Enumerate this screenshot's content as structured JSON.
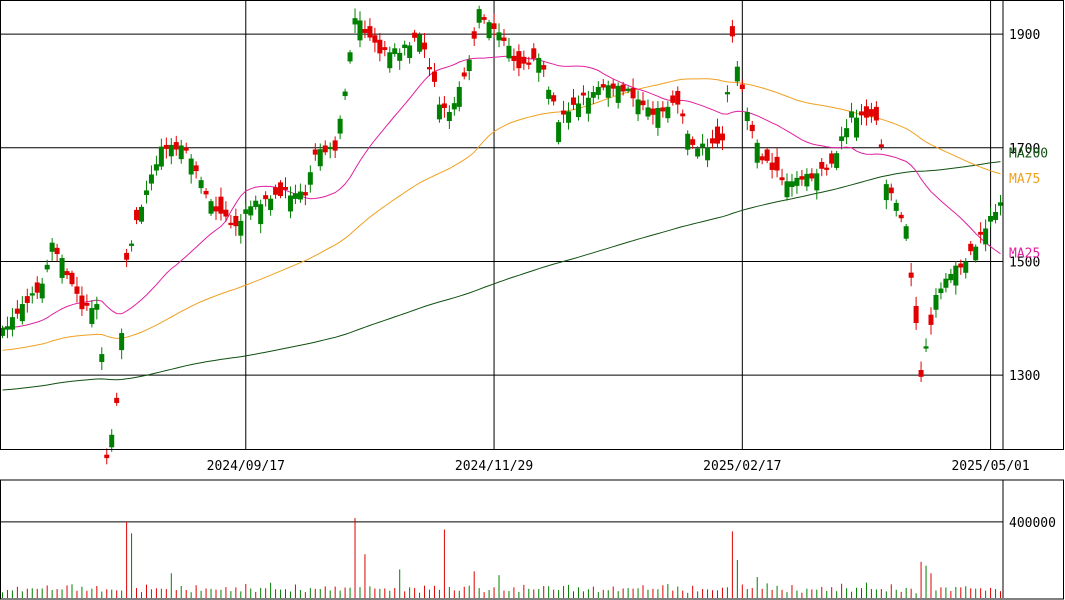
{
  "chart_data": {
    "type": "candlestick",
    "colors": {
      "up": "#008000",
      "down": "#e00000",
      "ma25": "#e020a0",
      "ma75": "#f0a020",
      "ma200": "#105010",
      "grid": "#000000"
    },
    "price_axis": {
      "ticks": [
        1300,
        1500,
        1700,
        1900
      ],
      "tick_labels": [
        "1300",
        "1500",
        "1700",
        "1900"
      ],
      "ylim": [
        1170,
        1960
      ]
    },
    "volume_axis": {
      "ticks": [
        400000
      ],
      "tick_labels": [
        "400000"
      ],
      "ylim": [
        0,
        620000
      ]
    },
    "date_labels": [
      {
        "label": "2024/09/17",
        "index": 49
      },
      {
        "label": "2024/11/29",
        "index": 99
      },
      {
        "label": "2025/02/17",
        "index": 149
      },
      {
        "label": "2025/05/01",
        "index": 199
      }
    ],
    "ma_labels": {
      "ma200": "MA200",
      "ma75": "MA75",
      "ma25": "MA25"
    },
    "close_keypoints": [
      [
        0,
        1380
      ],
      [
        8,
        1460
      ],
      [
        10,
        1530
      ],
      [
        12,
        1500
      ],
      [
        16,
        1420
      ],
      [
        19,
        1420
      ],
      [
        20,
        1340
      ],
      [
        21,
        1150
      ],
      [
        23,
        1250
      ],
      [
        25,
        1500
      ],
      [
        28,
        1600
      ],
      [
        32,
        1700
      ],
      [
        37,
        1700
      ],
      [
        42,
        1600
      ],
      [
        47,
        1560
      ],
      [
        50,
        1600
      ],
      [
        57,
        1620
      ],
      [
        61,
        1620
      ],
      [
        63,
        1690
      ],
      [
        67,
        1700
      ],
      [
        69,
        1800
      ],
      [
        71,
        1930
      ],
      [
        76,
        1870
      ],
      [
        80,
        1870
      ],
      [
        84,
        1900
      ],
      [
        88,
        1780
      ],
      [
        90,
        1760
      ],
      [
        94,
        1850
      ],
      [
        96,
        1940
      ],
      [
        101,
        1890
      ],
      [
        104,
        1840
      ],
      [
        108,
        1860
      ],
      [
        112,
        1750
      ],
      [
        116,
        1780
      ],
      [
        121,
        1810
      ],
      [
        126,
        1800
      ],
      [
        131,
        1760
      ],
      [
        136,
        1780
      ],
      [
        139,
        1700
      ],
      [
        145,
        1710
      ],
      [
        147,
        1890
      ],
      [
        150,
        1760
      ],
      [
        153,
        1680
      ],
      [
        158,
        1640
      ],
      [
        163,
        1650
      ],
      [
        167,
        1670
      ],
      [
        171,
        1760
      ],
      [
        176,
        1750
      ],
      [
        178,
        1640
      ],
      [
        180,
        1600
      ],
      [
        182,
        1560
      ],
      [
        185,
        1300
      ],
      [
        188,
        1440
      ],
      [
        191,
        1480
      ],
      [
        194,
        1500
      ],
      [
        196,
        1530
      ],
      [
        200,
        1590
      ],
      [
        201,
        1600
      ]
    ],
    "close_offsets": [
      3,
      -4,
      2,
      -2,
      5,
      -3,
      4,
      -5,
      1,
      -1,
      3,
      -2,
      6,
      -4,
      0
    ],
    "body_sizes": [
      14,
      6,
      22,
      9,
      30,
      12,
      4,
      18,
      26,
      8,
      16,
      11,
      35,
      7,
      20,
      13,
      24,
      5,
      28,
      10
    ],
    "volume_raw": [
      30,
      28,
      35,
      40,
      25,
      48,
      36,
      42,
      30,
      55,
      40,
      31,
      38,
      45,
      60,
      35,
      42,
      30,
      27,
      50
    ],
    "volume_spikes": [
      {
        "index": 25,
        "value": 400000
      },
      {
        "index": 26,
        "value": 340000
      },
      {
        "index": 34,
        "value": 130000
      },
      {
        "index": 71,
        "value": 420000
      },
      {
        "index": 73,
        "value": 230000
      },
      {
        "index": 80,
        "value": 150000
      },
      {
        "index": 89,
        "value": 360000
      },
      {
        "index": 95,
        "value": 140000
      },
      {
        "index": 100,
        "value": 120000
      },
      {
        "index": 147,
        "value": 350000
      },
      {
        "index": 148,
        "value": 200000
      },
      {
        "index": 152,
        "value": 110000
      },
      {
        "index": 185,
        "value": 190000
      },
      {
        "index": 186,
        "value": 170000
      },
      {
        "index": 187,
        "value": 130000
      }
    ]
  }
}
